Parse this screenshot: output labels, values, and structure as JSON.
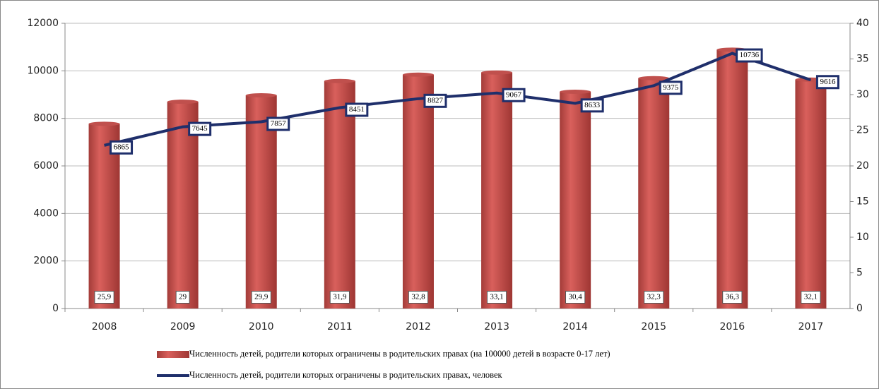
{
  "chart_data": {
    "type": "bar-line",
    "categories": [
      "2008",
      "2009",
      "2010",
      "2011",
      "2012",
      "2013",
      "2014",
      "2015",
      "2016",
      "2017"
    ],
    "series": [
      {
        "name": "Численность детей, родители которых ограничены в родительских правах (на 100000 детей в возрасте 0-17 лет)",
        "type": "bar",
        "axis": "y2",
        "color": "#c0504d",
        "values": [
          25.9,
          29,
          29.9,
          31.9,
          32.8,
          33.1,
          30.4,
          32.3,
          36.3,
          32.1
        ],
        "value_labels": [
          "25,9",
          "29",
          "29,9",
          "31,9",
          "32,8",
          "33,1",
          "30,4",
          "32,3",
          "36,3",
          "32,1"
        ]
      },
      {
        "name": "Численность  детей, родители которых ограничены в  родительских правах, человек",
        "type": "line",
        "axis": "y",
        "color": "#1f2f6b",
        "values": [
          6865,
          7645,
          7857,
          8451,
          8827,
          9067,
          8633,
          9375,
          10736,
          9616
        ]
      }
    ],
    "ylim": [
      0,
      12000
    ],
    "yticks": [
      0,
      2000,
      4000,
      6000,
      8000,
      10000,
      12000
    ],
    "y2lim": [
      0,
      40
    ],
    "y2ticks": [
      0,
      5,
      10,
      15,
      20,
      25,
      30,
      35,
      40
    ],
    "grid": true,
    "legend": "bottom"
  }
}
